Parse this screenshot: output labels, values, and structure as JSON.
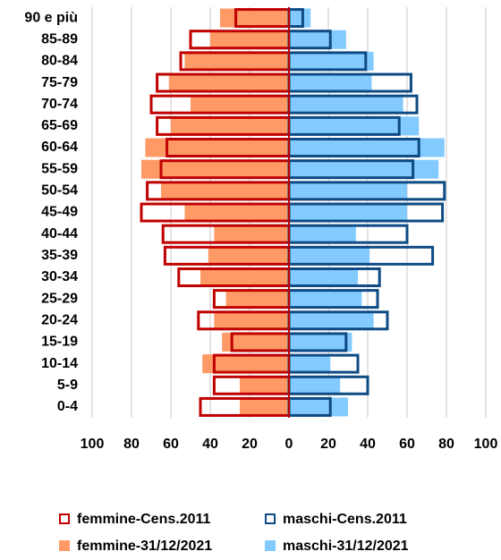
{
  "chart_data": {
    "type": "pyramid",
    "categories": [
      "90 e più",
      "85-89",
      "80-84",
      "75-79",
      "70-74",
      "65-69",
      "60-64",
      "55-59",
      "50-54",
      "45-49",
      "40-44",
      "35-39",
      "30-34",
      "25-29",
      "20-24",
      "15-19",
      "10-14",
      "5-9",
      "0-4"
    ],
    "series": [
      {
        "name": "femmine-Cens.2011",
        "color": "#c00000",
        "style": "outline",
        "values": [
          -27,
          -50,
          -55,
          -67,
          -70,
          -67,
          -62,
          -65,
          -72,
          -75,
          -64,
          -63,
          -56,
          -38,
          -46,
          -29,
          -38,
          -38,
          -45
        ]
      },
      {
        "name": "maschi-Cens.2011",
        "color": "#0e4a84",
        "style": "outline",
        "values": [
          7,
          21,
          39,
          62,
          65,
          56,
          66,
          63,
          79,
          78,
          60,
          73,
          46,
          45,
          50,
          29,
          35,
          40,
          21
        ]
      },
      {
        "name": "femmine-31/12/2021",
        "color": "#ff9966",
        "style": "filled",
        "values": [
          -35,
          -40,
          -53,
          -61,
          -50,
          -60,
          -73,
          -75,
          -65,
          -53,
          -38,
          -41,
          -45,
          -32,
          -38,
          -34,
          -44,
          -25,
          -25
        ]
      },
      {
        "name": "maschi-31/12/2021",
        "color": "#83caff",
        "style": "filled",
        "values": [
          11,
          29,
          43,
          42,
          58,
          66,
          79,
          76,
          60,
          60,
          34,
          41,
          35,
          37,
          43,
          32,
          21,
          26,
          30
        ]
      }
    ],
    "xlim": [
      -100,
      100
    ],
    "xticks": [
      {
        "value": -100,
        "label": "100"
      },
      {
        "value": -80,
        "label": "80"
      },
      {
        "value": -60,
        "label": "60"
      },
      {
        "value": -40,
        "label": "40"
      },
      {
        "value": -20,
        "label": "20"
      },
      0,
      20,
      40,
      60,
      80,
      100
    ],
    "grid": true
  }
}
